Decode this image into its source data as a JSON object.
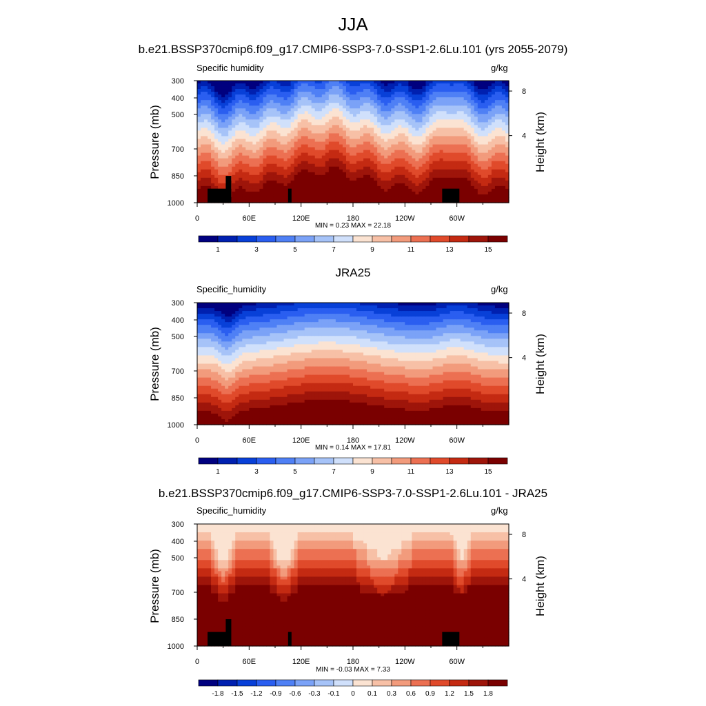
{
  "title": "JJA",
  "colors": {
    "abs_palette": [
      "#00007f",
      "#0020b0",
      "#0840d8",
      "#2a5ef0",
      "#4f80f5",
      "#7ba2f7",
      "#a6c3f8",
      "#d0e0fb",
      "#fbe3d2",
      "#f7c0a6",
      "#f29b7c",
      "#ec7052",
      "#e04a2b",
      "#c42a12",
      "#9e150a",
      "#7a0000"
    ],
    "diff_palette": [
      "#00007f",
      "#0020b0",
      "#0840d8",
      "#2a5ef0",
      "#4f80f5",
      "#7ba2f7",
      "#a6c3f8",
      "#d0e0fb",
      "#fbe3d2",
      "#f7c0a6",
      "#f29b7c",
      "#ec7052",
      "#e04a2b",
      "#c42a12",
      "#9e150a",
      "#7a0000"
    ],
    "terrain": "#000000"
  },
  "chart_data": [
    {
      "type": "heatmap",
      "subtitle": "b.e21.BSSP370cmip6.f09_g17.CMIP6-SSP3-7.0-SSP1-2.6Lu.101 (yrs 2055-2079)",
      "field": "Specific humidity",
      "units": "g/kg",
      "ylabel": "Pressure (mb)",
      "ylabel_right": "Height (km)",
      "x_ticks": [
        "0",
        "60E",
        "120E",
        "180",
        "120W",
        "60W"
      ],
      "y_ticks": [
        "300",
        "400",
        "500",
        "700",
        "850",
        "1000"
      ],
      "height_ticks": [
        "8",
        "4"
      ],
      "min": "0.23",
      "max": "22.18",
      "minmax_text": "MIN =   0.23  MAX =   22.18",
      "colorbar_labels": [
        "1",
        "3",
        "5",
        "7",
        "9",
        "11",
        "13",
        "15"
      ],
      "surface_level_at_lon": [
        [
          0,
          12
        ],
        [
          60,
          7
        ],
        [
          120,
          8
        ],
        [
          180,
          11
        ],
        [
          240,
          10
        ],
        [
          300,
          12
        ],
        [
          360,
          11
        ]
      ],
      "terrain": true
    },
    {
      "type": "heatmap",
      "subtitle": "JRA25",
      "field": "Specific_humidity",
      "units": "g/kg",
      "ylabel": "Pressure (mb)",
      "ylabel_right": "Height (km)",
      "x_ticks": [
        "0",
        "60E",
        "120E",
        "180",
        "120W",
        "60W"
      ],
      "y_ticks": [
        "300",
        "400",
        "500",
        "700",
        "850",
        "1000"
      ],
      "height_ticks": [
        "8",
        "4"
      ],
      "min": "0.14",
      "max": "17.81",
      "minmax_text": "MIN =   0.14  MAX =   17.81",
      "colorbar_labels": [
        "1",
        "3",
        "5",
        "7",
        "9",
        "11",
        "13",
        "15"
      ],
      "terrain": false
    },
    {
      "type": "heatmap",
      "subtitle": "b.e21.BSSP370cmip6.f09_g17.CMIP6-SSP3-7.0-SSP1-2.6Lu.101 - JRA25",
      "field": "Specific_humidity",
      "units": "g/kg",
      "ylabel": "Pressure (mb)",
      "ylabel_right": "Height (km)",
      "x_ticks": [
        "0",
        "60E",
        "120E",
        "180",
        "120W",
        "60W"
      ],
      "y_ticks": [
        "300",
        "400",
        "500",
        "700",
        "850",
        "1000"
      ],
      "height_ticks": [
        "8",
        "4"
      ],
      "min": "-0.03",
      "max": "7.33",
      "minmax_text": "MIN =  -0.03  MAX =   7.33",
      "colorbar_labels": [
        "-1.8",
        "-1.5",
        "-1.2",
        "-0.9",
        "-0.6",
        "-0.3",
        "-0.1",
        "0",
        "0.1",
        "0.3",
        "0.6",
        "0.9",
        "1.2",
        "1.5",
        "1.8"
      ],
      "terrain": true
    }
  ]
}
